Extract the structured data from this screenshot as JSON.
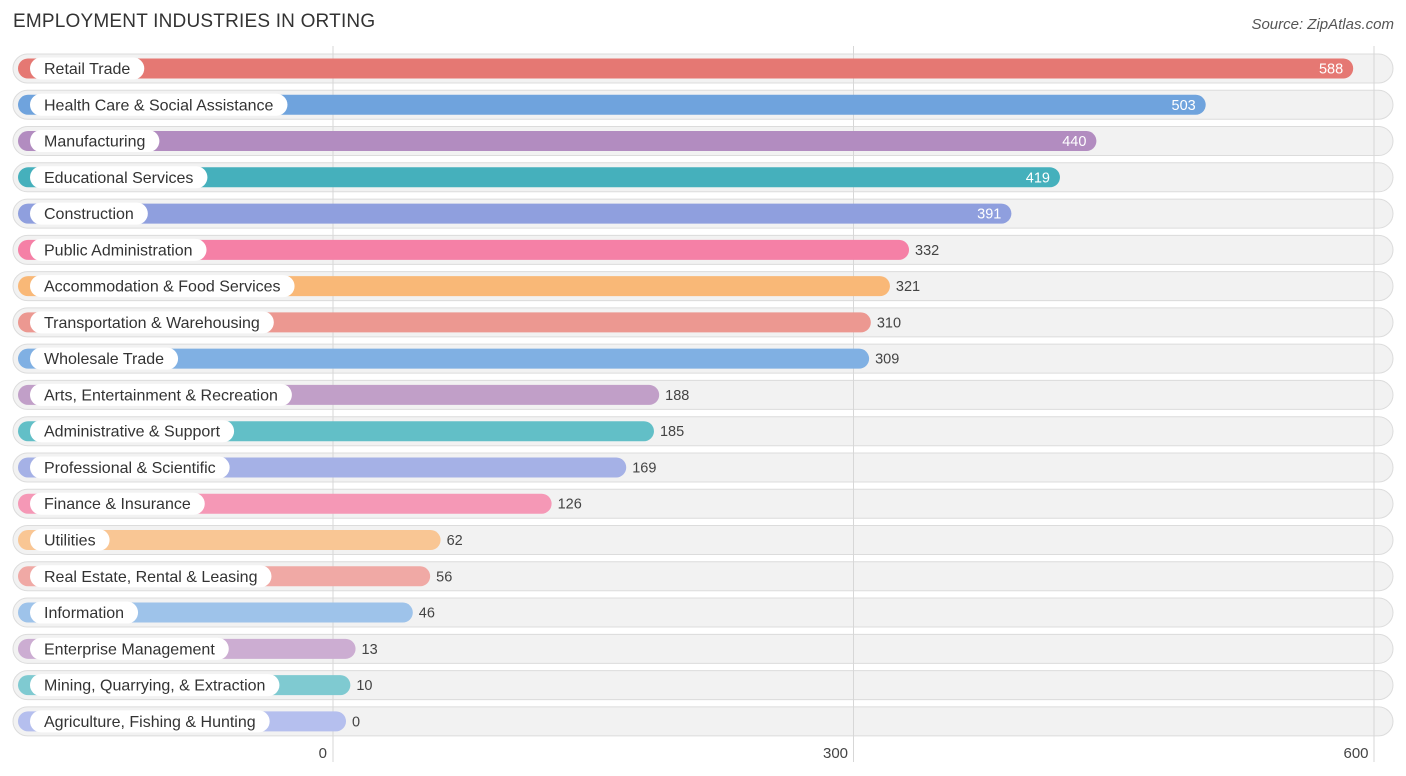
{
  "header": {
    "title": "EMPLOYMENT INDUSTRIES IN ORTING",
    "source": "Source: ZipAtlas.com"
  },
  "chart_data": {
    "type": "bar",
    "orientation": "horizontal",
    "title": "EMPLOYMENT INDUSTRIES IN ORTING",
    "xlabel": "",
    "ylabel": "",
    "xlim": [
      0,
      600
    ],
    "x_ticks": [
      0,
      300,
      600
    ],
    "grid": true,
    "categories": [
      "Retail Trade",
      "Health Care & Social Assistance",
      "Manufacturing",
      "Educational Services",
      "Construction",
      "Public Administration",
      "Accommodation & Food Services",
      "Transportation & Warehousing",
      "Wholesale Trade",
      "Arts, Entertainment & Recreation",
      "Administrative & Support",
      "Professional & Scientific",
      "Finance & Insurance",
      "Utilities",
      "Real Estate, Rental & Leasing",
      "Information",
      "Enterprise Management",
      "Mining, Quarrying, & Extraction",
      "Agriculture, Fishing & Hunting"
    ],
    "values": [
      588,
      503,
      440,
      419,
      391,
      332,
      321,
      310,
      309,
      188,
      185,
      169,
      126,
      62,
      56,
      46,
      13,
      10,
      0
    ],
    "colors": [
      "#e57873",
      "#6fa3dd",
      "#b28cc0",
      "#45b0bc",
      "#8f9fde",
      "#f580a6",
      "#f9b877",
      "#ec9891",
      "#80b0e3",
      "#c19fc8",
      "#62bfc7",
      "#a5b1e6",
      "#f598b6",
      "#f9c694",
      "#f0a9a5",
      "#9ec3ea",
      "#ccadd2",
      "#7fcad1",
      "#b5bfee"
    ]
  }
}
